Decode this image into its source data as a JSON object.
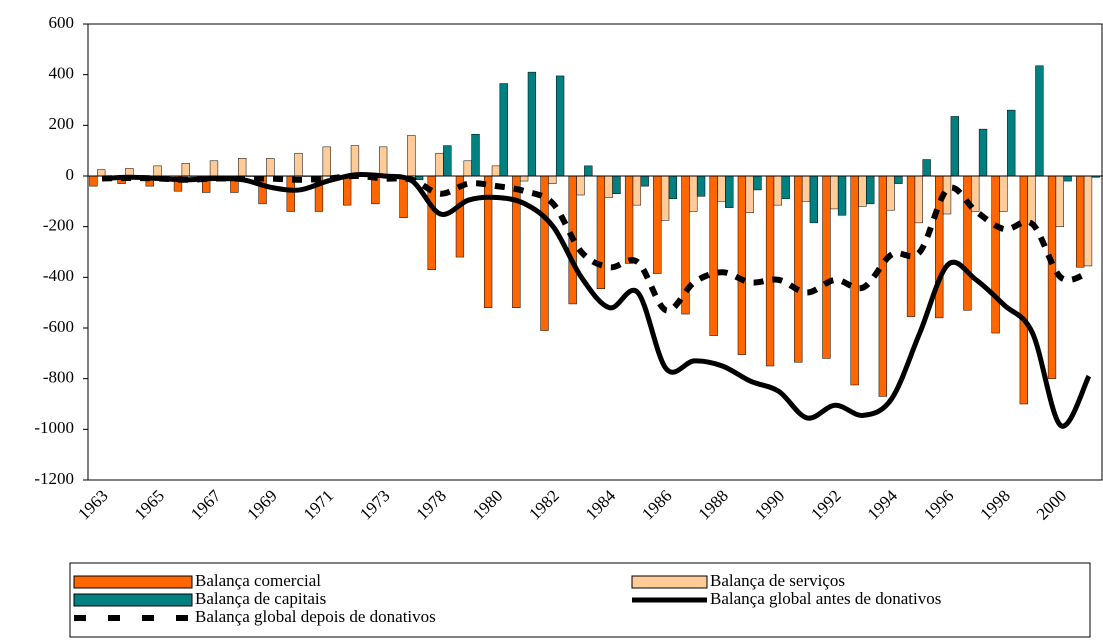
{
  "chart_data": {
    "type": "bar",
    "categories": [
      "1963",
      null,
      "1965",
      null,
      "1967",
      null,
      "1969",
      null,
      "1971",
      null,
      "1973",
      null,
      "1978",
      null,
      "1980",
      null,
      "1982",
      null,
      "1984",
      null,
      "1986",
      null,
      "1988",
      null,
      "1990",
      null,
      "1992",
      null,
      "1994",
      null,
      "1996",
      null,
      "1998",
      null,
      "2000",
      null
    ],
    "ylim": [
      -1200,
      600
    ],
    "yticks": [
      -1200,
      -1000,
      -800,
      -600,
      -400,
      -200,
      0,
      200,
      400,
      600
    ],
    "series": [
      {
        "name": "Balança comercial",
        "kind": "bar",
        "color": "#ff6600",
        "values": [
          -40,
          -30,
          -40,
          -60,
          -65,
          -65,
          -110,
          -140,
          -140,
          -115,
          -110,
          -165,
          -370,
          -320,
          -520,
          -520,
          -610,
          -505,
          -445,
          -345,
          -385,
          -545,
          -630,
          -705,
          -750,
          -735,
          -720,
          -825,
          -870,
          -555,
          -560,
          -530,
          -620,
          -900,
          -800,
          -360
        ]
      },
      {
        "name": "Balança de serviços",
        "kind": "bar",
        "color": "#ffcc99",
        "values": [
          25,
          30,
          40,
          50,
          60,
          70,
          70,
          90,
          115,
          120,
          115,
          160,
          90,
          60,
          40,
          -20,
          -30,
          -75,
          -85,
          -115,
          -175,
          -140,
          -100,
          -145,
          -115,
          -100,
          -130,
          -120,
          -135,
          -185,
          -150,
          -140,
          -140,
          -190,
          -200,
          -355
        ]
      },
      {
        "name": "Balança de capitais",
        "kind": "bar",
        "color": "#008080",
        "values": [
          0,
          0,
          0,
          0,
          0,
          0,
          0,
          0,
          0,
          0,
          0,
          -15,
          120,
          165,
          365,
          410,
          395,
          40,
          -70,
          -40,
          -90,
          -80,
          -125,
          -55,
          -90,
          -185,
          -155,
          -110,
          -30,
          65,
          235,
          185,
          260,
          435,
          -20,
          -5
        ]
      },
      {
        "name": "Balança global antes de donativos",
        "kind": "line",
        "color": "#000000",
        "dashed": false,
        "values": [
          -10,
          -5,
          -10,
          -15,
          -10,
          -15,
          -45,
          -55,
          -20,
          5,
          0,
          -20,
          -150,
          -95,
          -85,
          -110,
          -200,
          -400,
          -520,
          -460,
          -760,
          -730,
          -750,
          -810,
          -850,
          -955,
          -905,
          -945,
          -880,
          -620,
          -350,
          -410,
          -510,
          -620,
          -985,
          -790
        ]
      },
      {
        "name": "Balança global depois de donativos",
        "kind": "line",
        "color": "#000000",
        "dashed": true,
        "values": [
          -10,
          -8,
          -10,
          -15,
          -10,
          -10,
          -10,
          -15,
          -10,
          0,
          -10,
          -15,
          -70,
          -30,
          -40,
          -60,
          -110,
          -300,
          -360,
          -340,
          -530,
          -420,
          -380,
          -420,
          -410,
          -460,
          -410,
          -440,
          -310,
          -300,
          -50,
          -140,
          -210,
          -190,
          -400,
          -380
        ]
      }
    ]
  }
}
